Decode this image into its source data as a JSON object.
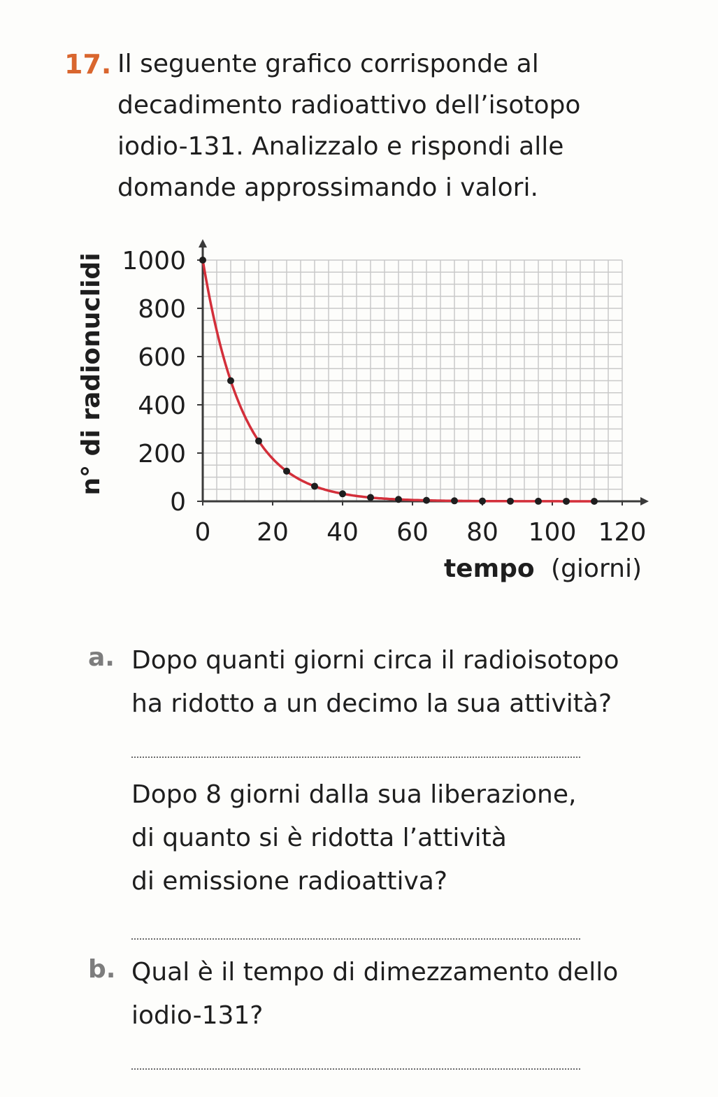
{
  "exercise": {
    "number": "17.",
    "intro_lines": [
      "Il seguente grafico corrisponde al",
      "decadimento radioattivo dell’isotopo",
      "iodio-131. Analizzalo e rispondi alle",
      "domande approssimando i valori."
    ]
  },
  "chart_data": {
    "type": "scatter",
    "ylabel": "n° di radionuclidi",
    "xlabel_bold": "tempo",
    "xlabel_unit": "(giorni)",
    "xlim": [
      0,
      120
    ],
    "ylim": [
      0,
      1000
    ],
    "x_ticks": [
      "0",
      "20",
      "40",
      "60",
      "80",
      "100",
      "120"
    ],
    "y_ticks": [
      "0",
      "200",
      "400",
      "600",
      "800",
      "1000"
    ],
    "grid": true,
    "curve_color": "#d32f3a",
    "point_color": "#1e1e1e",
    "points": [
      {
        "x": 0,
        "y": 1000
      },
      {
        "x": 8,
        "y": 500
      },
      {
        "x": 16,
        "y": 250
      },
      {
        "x": 24,
        "y": 125
      },
      {
        "x": 32,
        "y": 62.5
      },
      {
        "x": 40,
        "y": 31
      },
      {
        "x": 48,
        "y": 16
      },
      {
        "x": 56,
        "y": 8
      },
      {
        "x": 64,
        "y": 4
      },
      {
        "x": 72,
        "y": 2
      },
      {
        "x": 80,
        "y": 1
      },
      {
        "x": 88,
        "y": 0.5
      },
      {
        "x": 96,
        "y": 0.2
      },
      {
        "x": 104,
        "y": 0.1
      },
      {
        "x": 112,
        "y": 0.05
      }
    ]
  },
  "questions": {
    "a": {
      "letter": "a.",
      "q1_lines": [
        "Dopo quanti giorni circa il radioisotopo",
        "ha ridotto a un decimo la sua attività?"
      ],
      "q2_lines": [
        "Dopo 8 giorni dalla sua liberazione,",
        "di quanto si è ridotta l’attività",
        "di emissione radioattiva?"
      ]
    },
    "b": {
      "letter": "b.",
      "lines": [
        "Qual è il tempo di dimezzamento dello",
        "iodio-131?"
      ]
    }
  }
}
